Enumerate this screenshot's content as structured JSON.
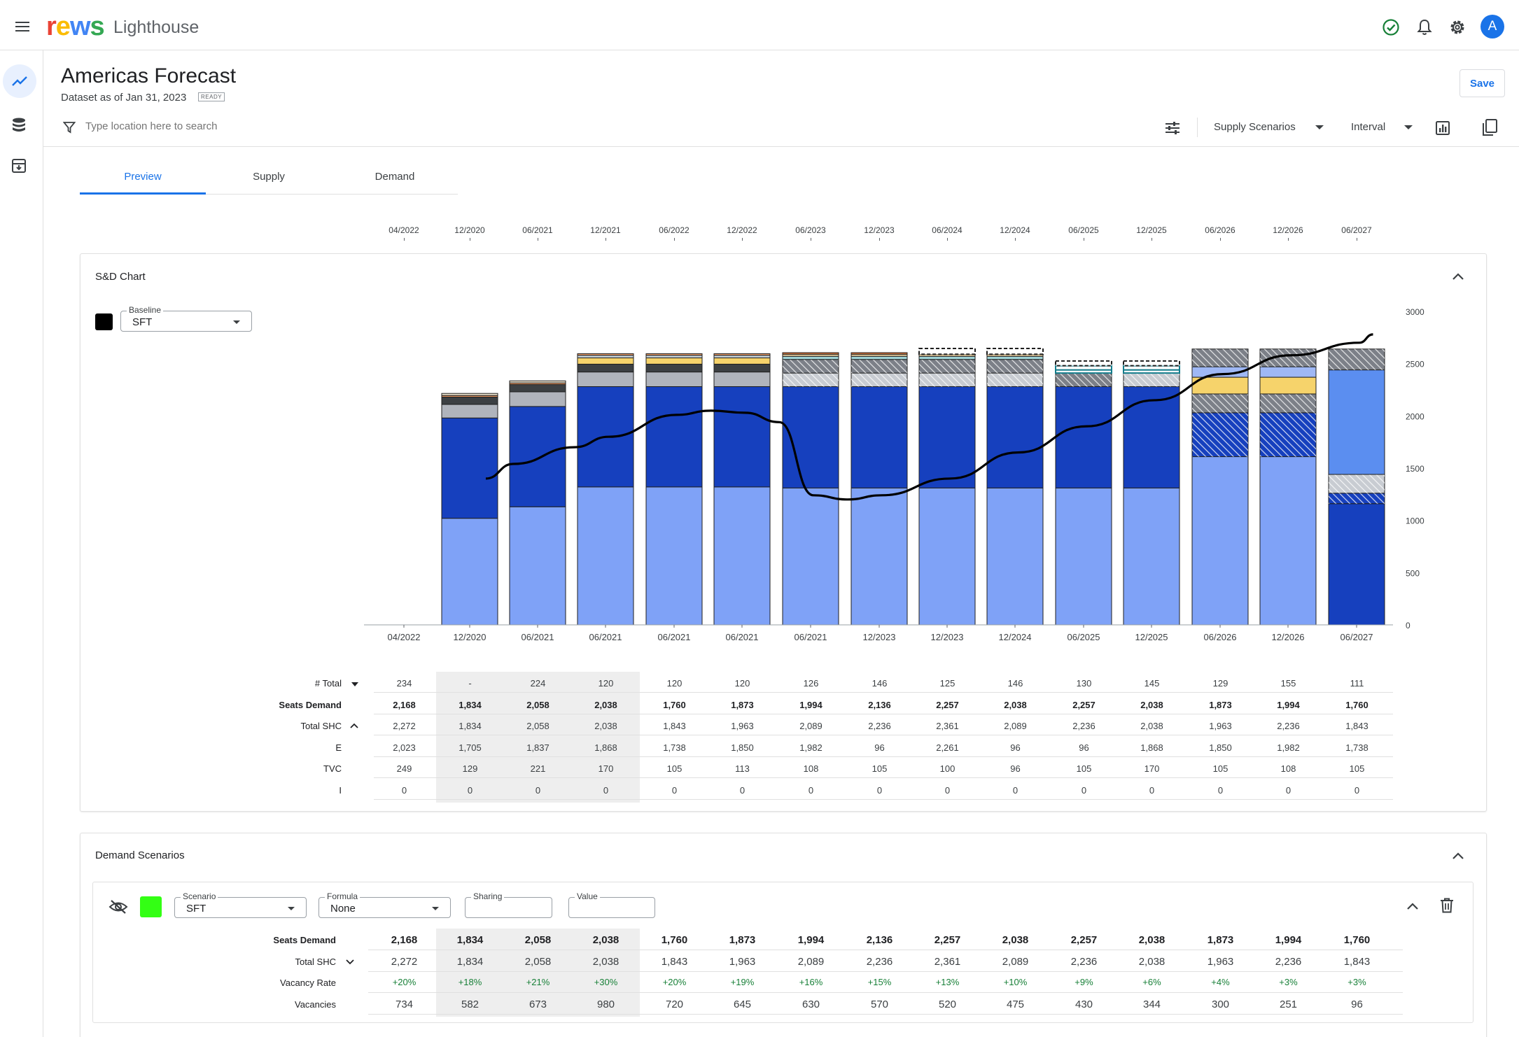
{
  "app": {
    "logo": "rews",
    "name": "Lighthouse",
    "avatar_initial": "A"
  },
  "colors": {
    "accent": "#1a73e8",
    "segment_light": "#7fa2f7",
    "segment_dark": "#1640be",
    "status_ok": "#188038",
    "scenario_swatch": "#33ff14",
    "baseline_swatch": "#000000"
  },
  "icons": {
    "menu": "menu-icon",
    "status": "check-circle-icon",
    "notifications": "bell-icon",
    "settings": "gear-icon",
    "rail": [
      "trend-icon",
      "database-icon",
      "archive-icon"
    ],
    "filter": "filter-icon",
    "tune": "tune-icon",
    "chart": "bar-chart-icon",
    "copy": "copy-icon",
    "visibility": "eye-off-icon",
    "delete": "trash-icon"
  },
  "page": {
    "title": "Americas Forecast",
    "subtitle": "Dataset as of Jan 31, 2023",
    "status_badge": "READY",
    "save_label": "Save"
  },
  "search": {
    "placeholder": "Type location here to search",
    "value": ""
  },
  "toolbar": {
    "supply_scenarios": "Supply Scenarios",
    "interval": "Interval"
  },
  "tabs": [
    {
      "label": "Preview",
      "active": true
    },
    {
      "label": "Supply",
      "active": false
    },
    {
      "label": "Demand",
      "active": false
    }
  ],
  "timeline": [
    "04/2022",
    "12/2020",
    "06/2021",
    "12/2021",
    "06/2022",
    "12/2022",
    "06/2023",
    "12/2023",
    "06/2024",
    "12/2024",
    "06/2025",
    "12/2025",
    "06/2026",
    "12/2026",
    "06/2027"
  ],
  "sd_chart": {
    "title": "S&D Chart",
    "baseline": {
      "label": "Baseline",
      "value": "SFT"
    },
    "rows": [
      {
        "label": "# Total",
        "toggle": "dropdown",
        "bold": false,
        "values": [
          "234",
          "-",
          "224",
          "120",
          "120",
          "120",
          "126",
          "146",
          "125",
          "146",
          "130",
          "145",
          "129",
          "155",
          "111"
        ]
      },
      {
        "label": "Seats Demand",
        "toggle": "",
        "bold": true,
        "values": [
          "2,168",
          "1,834",
          "2,058",
          "2,038",
          "1,760",
          "1,873",
          "1,994",
          "2,136",
          "2,257",
          "2,038",
          "2,257",
          "2,038",
          "1,873",
          "1,994",
          "1,760"
        ]
      },
      {
        "label": "Total SHC",
        "toggle": "collapse",
        "bold": false,
        "values": [
          "2,272",
          "1,834",
          "2,058",
          "2,038",
          "1,843",
          "1,963",
          "2,089",
          "2,236",
          "2,361",
          "2,089",
          "2,236",
          "2,038",
          "1,963",
          "2,236",
          "1,843"
        ]
      },
      {
        "label": "E",
        "toggle": "",
        "bold": false,
        "values": [
          "2,023",
          "1,705",
          "1,837",
          "1,868",
          "1,738",
          "1,850",
          "1,982",
          "96",
          "2,261",
          "96",
          "96",
          "1,868",
          "1,850",
          "1,982",
          "1,738"
        ]
      },
      {
        "label": "TVC",
        "toggle": "",
        "bold": false,
        "values": [
          "249",
          "129",
          "221",
          "170",
          "105",
          "113",
          "108",
          "105",
          "100",
          "96",
          "105",
          "170",
          "105",
          "108",
          "105"
        ]
      },
      {
        "label": "I",
        "toggle": "",
        "bold": false,
        "values": [
          "0",
          "0",
          "0",
          "0",
          "0",
          "0",
          "0",
          "0",
          "0",
          "0",
          "0",
          "0",
          "0",
          "0",
          "0"
        ]
      }
    ]
  },
  "chart_data": {
    "type": "bar",
    "stacked": true,
    "categories": [
      "04/2022",
      "12/2020",
      "06/2021",
      "06/2021",
      "06/2021",
      "06/2021",
      "06/2021",
      "12/2023",
      "12/2023",
      "12/2024",
      "06/2025",
      "12/2025",
      "06/2026",
      "12/2026",
      "06/2027"
    ],
    "ylim": [
      0,
      3000
    ],
    "yticks": [
      0,
      500,
      1000,
      1500,
      2000,
      2500,
      3000
    ],
    "y_axis_position": "right",
    "grid": false,
    "legend": "none",
    "segments": [
      [],
      [
        {
          "v": 1020,
          "c": "#7fa2f7"
        },
        {
          "v": 960,
          "c": "#1640be"
        },
        {
          "v": 130,
          "c": "#b0b4bc"
        },
        {
          "v": 70,
          "c": "#3c4043"
        },
        {
          "v": 15,
          "c": "#f4a06a"
        },
        {
          "v": 20,
          "c": "#e8e0cc"
        }
      ],
      [
        {
          "v": 1130,
          "c": "#7fa2f7"
        },
        {
          "v": 960,
          "c": "#1640be"
        },
        {
          "v": 140,
          "c": "#b0b4bc"
        },
        {
          "v": 70,
          "c": "#3c4043"
        },
        {
          "v": 15,
          "c": "#f4a06a"
        },
        {
          "v": 20,
          "c": "#e8e0cc"
        }
      ],
      [
        {
          "v": 1320,
          "c": "#7fa2f7"
        },
        {
          "v": 960,
          "c": "#1640be"
        },
        {
          "v": 140,
          "c": "#b0b4bc"
        },
        {
          "v": 75,
          "c": "#3c4043"
        },
        {
          "v": 60,
          "c": "#f6d36b"
        },
        {
          "v": 25,
          "c": "#c6d0d8"
        },
        {
          "v": 15,
          "c": "#f4a06a"
        }
      ],
      [
        {
          "v": 1320,
          "c": "#7fa2f7"
        },
        {
          "v": 960,
          "c": "#1640be"
        },
        {
          "v": 140,
          "c": "#b0b4bc"
        },
        {
          "v": 75,
          "c": "#3c4043"
        },
        {
          "v": 60,
          "c": "#f6d36b"
        },
        {
          "v": 25,
          "c": "#c6d0d8"
        },
        {
          "v": 15,
          "c": "#f4a06a"
        }
      ],
      [
        {
          "v": 1320,
          "c": "#7fa2f7"
        },
        {
          "v": 960,
          "c": "#1640be"
        },
        {
          "v": 140,
          "c": "#b0b4bc"
        },
        {
          "v": 75,
          "c": "#3c4043"
        },
        {
          "v": 60,
          "c": "#f6d36b"
        },
        {
          "v": 25,
          "c": "#c6d0d8"
        },
        {
          "v": 15,
          "c": "#f4a06a"
        }
      ],
      [
        {
          "v": 1310,
          "c": "#7fa2f7"
        },
        {
          "v": 970,
          "c": "#1640be"
        },
        {
          "v": 130,
          "c": "#c8ccd2",
          "p": "hatch"
        },
        {
          "v": 130,
          "c": "#7c8088",
          "p": "hatch"
        },
        {
          "v": 30,
          "c": "#9fd3d6"
        },
        {
          "v": 20,
          "c": "#e8cfa0"
        },
        {
          "v": 15,
          "c": "#e0773a"
        }
      ],
      [
        {
          "v": 1310,
          "c": "#7fa2f7"
        },
        {
          "v": 970,
          "c": "#1640be"
        },
        {
          "v": 130,
          "c": "#c8ccd2",
          "p": "hatch"
        },
        {
          "v": 130,
          "c": "#7c8088",
          "p": "hatch"
        },
        {
          "v": 30,
          "c": "#9fd3d6"
        },
        {
          "v": 20,
          "c": "#e8cfa0"
        },
        {
          "v": 15,
          "c": "#e0773a"
        }
      ],
      [
        {
          "v": 1310,
          "c": "#7fa2f7"
        },
        {
          "v": 970,
          "c": "#1640be"
        },
        {
          "v": 130,
          "c": "#c8ccd2",
          "p": "hatch"
        },
        {
          "v": 130,
          "c": "#7c8088",
          "p": "hatch"
        },
        {
          "v": 30,
          "c": "#9fd3d6"
        },
        {
          "v": 20,
          "c": "#e8cfa0"
        },
        {
          "v": 55,
          "c": "#ffffff",
          "p": "dashed"
        }
      ],
      [
        {
          "v": 1310,
          "c": "#7fa2f7"
        },
        {
          "v": 970,
          "c": "#1640be"
        },
        {
          "v": 130,
          "c": "#c8ccd2",
          "p": "hatch"
        },
        {
          "v": 130,
          "c": "#7c8088",
          "p": "hatch"
        },
        {
          "v": 30,
          "c": "#9fd3d6"
        },
        {
          "v": 20,
          "c": "#e8cfa0"
        },
        {
          "v": 55,
          "c": "#ffffff",
          "p": "dashed"
        }
      ],
      [
        {
          "v": 1310,
          "c": "#7fa2f7"
        },
        {
          "v": 970,
          "c": "#1640be"
        },
        {
          "v": 130,
          "c": "#7c8088",
          "p": "hatch"
        },
        {
          "v": 30,
          "c": "#ffffff",
          "p": "outline"
        },
        {
          "v": 40,
          "c": "#ffffff",
          "p": "outline"
        },
        {
          "v": 45,
          "c": "#ffffff",
          "p": "dashed"
        }
      ],
      [
        {
          "v": 1310,
          "c": "#7fa2f7"
        },
        {
          "v": 970,
          "c": "#1640be"
        },
        {
          "v": 130,
          "c": "#c8ccd2",
          "p": "hatch"
        },
        {
          "v": 30,
          "c": "#ffffff",
          "p": "outline"
        },
        {
          "v": 40,
          "c": "#ffffff",
          "p": "outline"
        },
        {
          "v": 45,
          "c": "#ffffff",
          "p": "dashed"
        }
      ],
      [
        {
          "v": 1610,
          "c": "#7fa2f7"
        },
        {
          "v": 420,
          "c": "#1640be",
          "p": "hatch"
        },
        {
          "v": 180,
          "c": "#7c8088",
          "p": "hatch"
        },
        {
          "v": 160,
          "c": "#f6d36b"
        },
        {
          "v": 100,
          "c": "#9fb8f5"
        },
        {
          "v": 170,
          "c": "#7c8088",
          "p": "hatch"
        }
      ],
      [
        {
          "v": 1610,
          "c": "#7fa2f7"
        },
        {
          "v": 420,
          "c": "#1640be",
          "p": "hatch"
        },
        {
          "v": 180,
          "c": "#7c8088",
          "p": "hatch"
        },
        {
          "v": 160,
          "c": "#f6d36b"
        },
        {
          "v": 100,
          "c": "#9fb8f5"
        },
        {
          "v": 170,
          "c": "#7c8088",
          "p": "hatch"
        }
      ],
      [
        {
          "v": 1160,
          "c": "#1640be"
        },
        {
          "v": 100,
          "c": "#1640be",
          "p": "hatch"
        },
        {
          "v": 180,
          "c": "#c8ccd2",
          "p": "hatch"
        },
        {
          "v": 1000,
          "c": "#5b8ef0"
        },
        {
          "v": 200,
          "c": "#7c8088",
          "p": "hatch"
        }
      ]
    ],
    "series": [
      {
        "name": "",
        "type": "line",
        "color": "#000000",
        "points": [
          [
            1.2,
            1400
          ],
          [
            1.6,
            1540
          ],
          [
            2.5,
            1700
          ],
          [
            3,
            1800
          ],
          [
            4,
            2010
          ],
          [
            4.5,
            2050
          ],
          [
            5,
            2030
          ],
          [
            5.5,
            1940
          ],
          [
            6,
            1240
          ],
          [
            6.5,
            1200
          ],
          [
            7,
            1240
          ],
          [
            8,
            1400
          ],
          [
            9,
            1650
          ],
          [
            10,
            1900
          ],
          [
            11,
            2150
          ],
          [
            12,
            2400
          ],
          [
            13,
            2580
          ],
          [
            14,
            2700
          ],
          [
            14.2,
            2780
          ]
        ]
      }
    ]
  },
  "demand": {
    "title": "Demand Scenarios",
    "scenario": {
      "label": "Scenario",
      "value": "SFT"
    },
    "formula": {
      "label": "Formula",
      "value": "None"
    },
    "sharing": {
      "label": "Sharing",
      "value": ""
    },
    "value": {
      "label": "Value",
      "value": ""
    },
    "rows": [
      {
        "label": "Seats Demand",
        "toggle": "",
        "style": "bold",
        "values": [
          "2,168",
          "1,834",
          "2,058",
          "2,038",
          "1,760",
          "1,873",
          "1,994",
          "2,136",
          "2,257",
          "2,038",
          "2,257",
          "2,038",
          "1,873",
          "1,994",
          "1,760"
        ]
      },
      {
        "label": "Total SHC",
        "toggle": "expand",
        "style": "normal",
        "values": [
          "2,272",
          "1,834",
          "2,058",
          "2,038",
          "1,843",
          "1,963",
          "2,089",
          "2,236",
          "2,361",
          "2,089",
          "2,236",
          "2,038",
          "1,963",
          "2,236",
          "1,843"
        ]
      },
      {
        "label": "Vacancy Rate",
        "toggle": "",
        "style": "green",
        "values": [
          "+20%",
          "+18%",
          "+21%",
          "+30%",
          "+20%",
          "+19%",
          "+16%",
          "+15%",
          "+13%",
          "+10%",
          "+9%",
          "+6%",
          "+4%",
          "+3%",
          "+3%"
        ]
      },
      {
        "label": "Vacancies",
        "toggle": "",
        "style": "normal",
        "values": [
          "734",
          "582",
          "673",
          "980",
          "720",
          "645",
          "630",
          "570",
          "520",
          "475",
          "430",
          "344",
          "300",
          "251",
          "96"
        ]
      }
    ]
  }
}
